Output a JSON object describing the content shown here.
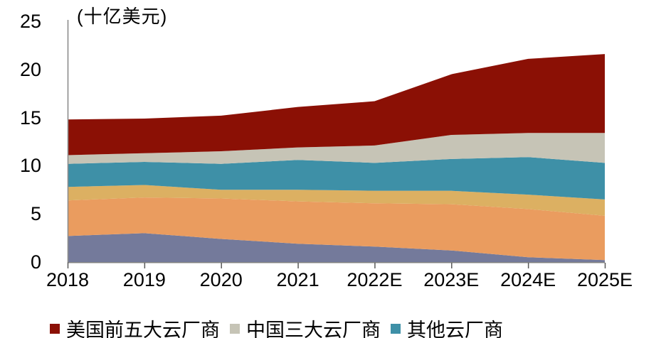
{
  "chart_data": {
    "type": "area",
    "stacked": true,
    "ylabel": "(十亿美元)",
    "ylim": [
      0,
      25
    ],
    "ytick_labels": [
      "0",
      "5",
      "10",
      "15",
      "20",
      "25"
    ],
    "ytick_values": [
      0,
      5,
      10,
      15,
      20,
      25
    ],
    "categories": [
      "2018",
      "2019",
      "2020",
      "2021",
      "2022E",
      "2023E",
      "2024E",
      "2025E"
    ],
    "series": [
      {
        "name": "",
        "color": "#747A9B",
        "values": [
          2.7,
          3.0,
          2.4,
          1.9,
          1.6,
          1.2,
          0.5,
          0.2
        ]
      },
      {
        "name": "",
        "color": "#EA9C5F",
        "values": [
          3.7,
          3.7,
          4.2,
          4.4,
          4.5,
          4.8,
          5.0,
          4.6
        ]
      },
      {
        "name": "",
        "color": "#DCB062",
        "values": [
          1.4,
          1.3,
          0.9,
          1.2,
          1.3,
          1.4,
          1.5,
          1.7
        ]
      },
      {
        "name": "其他云厂商",
        "color": "#3E90A7",
        "values": [
          2.4,
          2.4,
          2.7,
          3.1,
          2.9,
          3.3,
          3.9,
          3.8
        ]
      },
      {
        "name": "中国三大云厂商",
        "color": "#C6C4B6",
        "values": [
          0.9,
          0.9,
          1.3,
          1.3,
          1.8,
          2.5,
          2.5,
          3.1
        ]
      },
      {
        "name": "美国前五大云厂商",
        "color": "#8B1005",
        "values": [
          3.7,
          3.6,
          3.7,
          4.2,
          4.6,
          6.3,
          7.7,
          8.2
        ]
      }
    ],
    "legend": [
      {
        "label": "美国前五大云厂商",
        "color": "#8B1005"
      },
      {
        "label": "中国三大云厂商",
        "color": "#C6C4B6"
      },
      {
        "label": "其他云厂商",
        "color": "#3E90A7"
      }
    ],
    "legend_position": "bottom",
    "grid": false
  },
  "colors": {
    "background": "#FFFFFF",
    "y_axis_line": "#8C8C8C",
    "x_axis_line": "#595959",
    "tick_mark": "#595959",
    "text": "#000000"
  }
}
